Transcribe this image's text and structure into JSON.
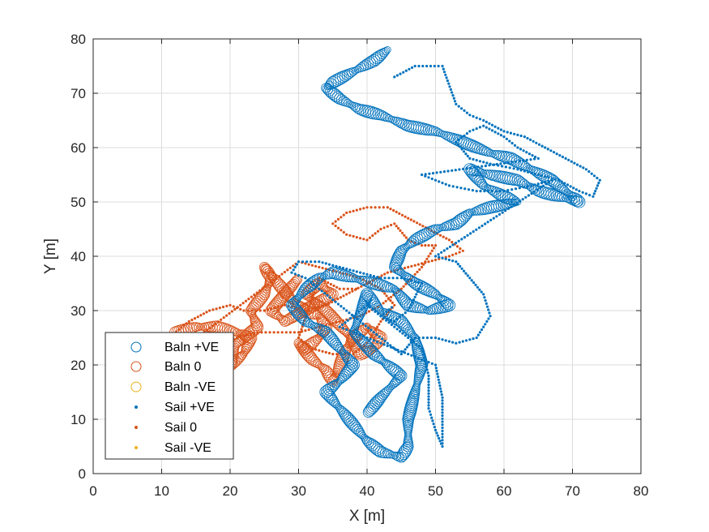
{
  "chart_data": {
    "type": "scatter",
    "title": "",
    "xlabel": "X [m]",
    "ylabel": "Y [m]",
    "xlim": [
      0,
      80
    ],
    "ylim": [
      0,
      80
    ],
    "xticks": [
      "0",
      "10",
      "20",
      "30",
      "40",
      "50",
      "60",
      "70",
      "80"
    ],
    "yticks": [
      "0",
      "10",
      "20",
      "30",
      "40",
      "50",
      "60",
      "70",
      "80"
    ],
    "grid": true,
    "legend_placement": "bottom-left",
    "colors": {
      "blue": "#0072bd",
      "orange": "#d95319",
      "yellow": "#edb120"
    },
    "series": [
      {
        "name": "Baln +VE",
        "marker": "circle-open",
        "color": "#0072bd",
        "size": "large",
        "points": [
          [
            43,
            78
          ],
          [
            41,
            76
          ],
          [
            38,
            74
          ],
          [
            35,
            72
          ],
          [
            34,
            71
          ],
          [
            36,
            69
          ],
          [
            39,
            67
          ],
          [
            42,
            66
          ],
          [
            46,
            64
          ],
          [
            50,
            63
          ],
          [
            54,
            61
          ],
          [
            58,
            59
          ],
          [
            61,
            58
          ],
          [
            64,
            56
          ],
          [
            67,
            54
          ],
          [
            70,
            51
          ],
          [
            71,
            50
          ],
          [
            68,
            51
          ],
          [
            65,
            52
          ],
          [
            62,
            54
          ],
          [
            58,
            55
          ],
          [
            55,
            56
          ],
          [
            57,
            53
          ],
          [
            60,
            51
          ],
          [
            62,
            50
          ],
          [
            58,
            49
          ],
          [
            55,
            48
          ],
          [
            53,
            46
          ],
          [
            50,
            45
          ],
          [
            47,
            43
          ],
          [
            45,
            41
          ],
          [
            44,
            38
          ],
          [
            47,
            35
          ],
          [
            50,
            33
          ],
          [
            52,
            31
          ],
          [
            49,
            30
          ],
          [
            46,
            31
          ],
          [
            44,
            34
          ],
          [
            41,
            35
          ],
          [
            38,
            36
          ],
          [
            35,
            37
          ],
          [
            33,
            36
          ],
          [
            31,
            34
          ],
          [
            29,
            31
          ],
          [
            31,
            28
          ],
          [
            34,
            26
          ],
          [
            36,
            23
          ],
          [
            38,
            20
          ],
          [
            36,
            17
          ],
          [
            34,
            15
          ],
          [
            36,
            12
          ],
          [
            38,
            9
          ],
          [
            40,
            6
          ],
          [
            42,
            4
          ],
          [
            45,
            3
          ],
          [
            46,
            5
          ],
          [
            46,
            10
          ],
          [
            47,
            15
          ],
          [
            48,
            20
          ],
          [
            47,
            25
          ],
          [
            45,
            28
          ],
          [
            42,
            30
          ],
          [
            40,
            33
          ],
          [
            38,
            26
          ],
          [
            41,
            22
          ],
          [
            43,
            20
          ],
          [
            45,
            18
          ],
          [
            42,
            14
          ],
          [
            40,
            11
          ]
        ]
      },
      {
        "name": "Baln 0",
        "marker": "circle-open",
        "color": "#d95319",
        "size": "large",
        "points": [
          [
            12,
            26
          ],
          [
            15,
            27
          ],
          [
            18,
            27
          ],
          [
            21,
            26
          ],
          [
            23,
            25
          ],
          [
            22,
            22
          ],
          [
            20,
            20
          ],
          [
            21,
            24
          ],
          [
            24,
            27
          ],
          [
            23,
            30
          ],
          [
            25,
            33
          ],
          [
            26,
            36
          ],
          [
            25,
            38
          ],
          [
            27,
            35
          ],
          [
            29,
            32
          ],
          [
            31,
            30
          ],
          [
            33,
            29
          ],
          [
            34,
            27
          ],
          [
            33,
            25
          ],
          [
            31,
            23
          ],
          [
            30,
            24
          ],
          [
            32,
            21
          ],
          [
            34,
            19
          ],
          [
            35,
            17
          ],
          [
            36,
            20
          ],
          [
            37,
            23
          ],
          [
            38,
            25
          ],
          [
            40,
            27
          ],
          [
            42,
            25
          ],
          [
            41,
            23
          ],
          [
            39,
            22
          ],
          [
            37,
            26
          ],
          [
            34,
            30
          ],
          [
            31,
            33
          ],
          [
            33,
            35
          ],
          [
            35,
            33
          ],
          [
            28,
            28
          ],
          [
            26,
            30
          ],
          [
            30,
            36
          ]
        ]
      },
      {
        "name": "Baln -VE",
        "marker": "circle-open",
        "color": "#edb120",
        "size": "large",
        "points": []
      },
      {
        "name": "Sail +VE",
        "marker": "dot",
        "color": "#0072bd",
        "size": "small",
        "points": [
          [
            44,
            73
          ],
          [
            47,
            75
          ],
          [
            51,
            75
          ],
          [
            53,
            68
          ],
          [
            55,
            66
          ],
          [
            57,
            65
          ],
          [
            60,
            63
          ],
          [
            63,
            62
          ],
          [
            66,
            60
          ],
          [
            69,
            58
          ],
          [
            72,
            56
          ],
          [
            74,
            54
          ],
          [
            73,
            51
          ],
          [
            71,
            52
          ],
          [
            68,
            54
          ],
          [
            65,
            55
          ],
          [
            62,
            56
          ],
          [
            58,
            57
          ],
          [
            55,
            58
          ],
          [
            53,
            61
          ],
          [
            55,
            63
          ],
          [
            57,
            64
          ],
          [
            60,
            62
          ],
          [
            62,
            60
          ],
          [
            65,
            58
          ],
          [
            48,
            55
          ],
          [
            52,
            53
          ],
          [
            56,
            52
          ],
          [
            60,
            52
          ],
          [
            64,
            53
          ],
          [
            67,
            54
          ],
          [
            50,
            40
          ],
          [
            53,
            39
          ],
          [
            55,
            36
          ],
          [
            57,
            33
          ],
          [
            58,
            29
          ],
          [
            56,
            25
          ],
          [
            53,
            24
          ],
          [
            50,
            25
          ],
          [
            47,
            25
          ],
          [
            45,
            22
          ],
          [
            43,
            24
          ],
          [
            41,
            26
          ],
          [
            39,
            28
          ],
          [
            37,
            30
          ],
          [
            35,
            32
          ],
          [
            33,
            34
          ],
          [
            31,
            36
          ],
          [
            29,
            37
          ],
          [
            30,
            39
          ],
          [
            33,
            39
          ],
          [
            36,
            38
          ],
          [
            39,
            37
          ],
          [
            42,
            36
          ],
          [
            45,
            36
          ],
          [
            48,
            35
          ],
          [
            46,
            30
          ],
          [
            44,
            28
          ],
          [
            42,
            29
          ],
          [
            40,
            31
          ],
          [
            38,
            29
          ],
          [
            36,
            27
          ],
          [
            50,
            20
          ],
          [
            51,
            14
          ],
          [
            51,
            9
          ],
          [
            51,
            5
          ],
          [
            50,
            8
          ],
          [
            49,
            12
          ],
          [
            49,
            18
          ],
          [
            48,
            23
          ],
          [
            42,
            29
          ],
          [
            44,
            31
          ]
        ]
      },
      {
        "name": "Sail 0",
        "marker": "dot",
        "color": "#d95319",
        "size": "small",
        "points": [
          [
            11,
            25
          ],
          [
            14,
            28
          ],
          [
            17,
            30
          ],
          [
            20,
            31
          ],
          [
            22,
            30
          ],
          [
            25,
            30
          ],
          [
            28,
            31
          ],
          [
            31,
            30
          ],
          [
            34,
            31
          ],
          [
            37,
            33
          ],
          [
            40,
            35
          ],
          [
            43,
            37
          ],
          [
            46,
            38
          ],
          [
            49,
            39
          ],
          [
            52,
            40
          ],
          [
            54,
            41
          ],
          [
            52,
            43
          ],
          [
            49,
            45
          ],
          [
            46,
            47
          ],
          [
            43,
            49
          ],
          [
            40,
            49
          ],
          [
            37,
            48
          ],
          [
            35,
            46
          ],
          [
            37,
            44
          ],
          [
            40,
            43
          ],
          [
            42,
            45
          ],
          [
            44,
            46
          ],
          [
            46,
            43
          ],
          [
            48,
            42
          ],
          [
            50,
            42
          ],
          [
            48,
            38
          ],
          [
            45,
            34
          ],
          [
            42,
            31
          ],
          [
            39,
            29
          ],
          [
            36,
            28
          ],
          [
            33,
            27
          ],
          [
            30,
            26
          ],
          [
            27,
            26
          ],
          [
            24,
            26
          ],
          [
            21,
            25
          ],
          [
            18,
            24
          ],
          [
            15,
            24
          ],
          [
            13,
            23
          ],
          [
            30,
            39
          ],
          [
            33,
            38
          ],
          [
            36,
            37
          ],
          [
            39,
            36
          ],
          [
            42,
            34
          ],
          [
            44,
            31
          ],
          [
            42,
            28
          ],
          [
            40,
            24
          ],
          [
            38,
            22
          ],
          [
            35,
            22
          ],
          [
            32,
            23
          ],
          [
            30,
            25
          ],
          [
            33,
            36
          ],
          [
            36,
            34
          ],
          [
            39,
            34
          ]
        ]
      },
      {
        "name": "Sail -VE",
        "marker": "dot",
        "color": "#edb120",
        "size": "small",
        "points": []
      }
    ]
  }
}
